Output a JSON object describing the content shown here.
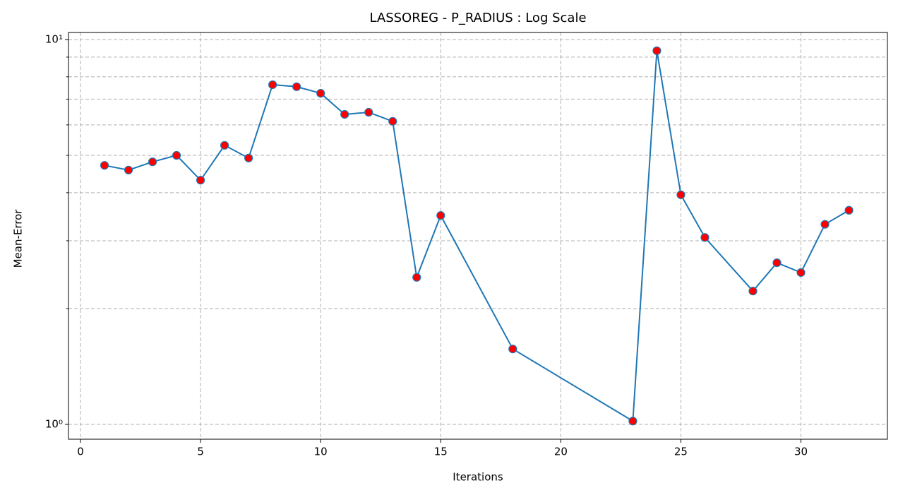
{
  "chart_data": {
    "type": "line",
    "title": "LASSOREG - P_RADIUS : Log Scale",
    "x_label": "Iterations",
    "y_label": "Mean-Error",
    "x": [
      1,
      2,
      3,
      4,
      5,
      6,
      7,
      8,
      9,
      10,
      11,
      12,
      13,
      14,
      15,
      18,
      23,
      24,
      25,
      26,
      28,
      29,
      30,
      31,
      32
    ],
    "series": [
      {
        "color": "#1f77b4",
        "marker_color": "red",
        "values": [
          4.71,
          4.58,
          4.81,
          5.0,
          4.31,
          5.31,
          4.92,
          7.63,
          7.54,
          7.25,
          6.39,
          6.47,
          6.13,
          2.41,
          3.49,
          1.57,
          1.02,
          9.35,
          3.95,
          3.06,
          2.22,
          2.63,
          2.48,
          3.31,
          3.6
        ]
      }
    ],
    "xlim": [
      -0.5,
      33.6
    ],
    "xticks": [
      0,
      5,
      10,
      15,
      20,
      25,
      30
    ],
    "ylim": [
      0.915,
      10.43
    ],
    "yscale": "log",
    "yticks": [
      {
        "value": 1,
        "label": "10⁰"
      },
      {
        "value": 10,
        "label": "10¹"
      }
    ],
    "minor_yticks": [
      2,
      3,
      4,
      5,
      6,
      7,
      8,
      9
    ],
    "grid": true
  }
}
